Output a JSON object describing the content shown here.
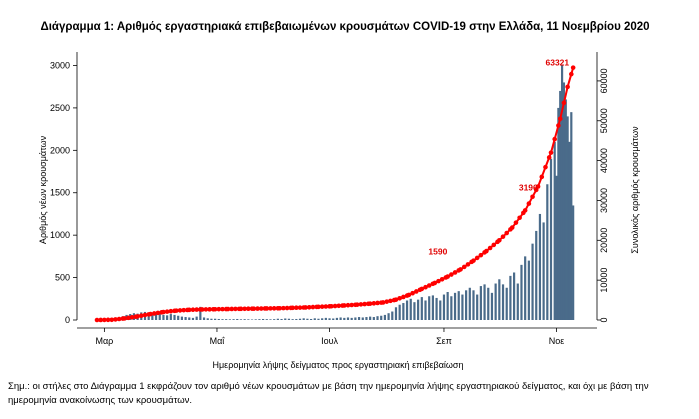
{
  "chart_data": {
    "type": "bar",
    "title": "Διάγραμμα 1: Αριθμός εργαστηριακά επιβεβαιωμένων κρουσμάτων COVID-19 στην Ελλάδα, 11 Νοεμβρίου 2020",
    "xlabel": "Ημερομηνία λήψης δείγματος προς εργαστηριακή επιβεβαίωση",
    "ylabel": "Αριθμός νέων κρουσμάτων",
    "ylabel_right": "Συνολικός αριθμός κρουσμάτων",
    "x_tick_labels": [
      "Μαρ",
      "Μαΐ",
      "Ιουλ",
      "Σεπ",
      "Νοε"
    ],
    "y_ticks": [
      0,
      500,
      1000,
      1500,
      2000,
      2500,
      3000
    ],
    "y_ticks_right": [
      0,
      10000,
      20000,
      30000,
      40000,
      50000,
      60000
    ],
    "ylim": [
      0,
      3100
    ],
    "ylim_right": [
      0,
      66000
    ],
    "x_range": [
      "2020-02-26",
      "2020-11-11"
    ],
    "grid": false,
    "series": [
      {
        "type": "bar",
        "color": "#4a6b8a",
        "points": [
          [
            "2020-02-26",
            2
          ],
          [
            "2020-02-28",
            3
          ],
          [
            "2020-03-01",
            5
          ],
          [
            "2020-03-03",
            8
          ],
          [
            "2020-03-05",
            12
          ],
          [
            "2020-03-07",
            20
          ],
          [
            "2020-03-09",
            35
          ],
          [
            "2020-03-11",
            45
          ],
          [
            "2020-03-13",
            60
          ],
          [
            "2020-03-15",
            70
          ],
          [
            "2020-03-17",
            80
          ],
          [
            "2020-03-19",
            75
          ],
          [
            "2020-03-21",
            90
          ],
          [
            "2020-03-23",
            95
          ],
          [
            "2020-03-25",
            85
          ],
          [
            "2020-03-27",
            80
          ],
          [
            "2020-03-29",
            90
          ],
          [
            "2020-03-31",
            75
          ],
          [
            "2020-04-02",
            60
          ],
          [
            "2020-04-04",
            55
          ],
          [
            "2020-04-06",
            70
          ],
          [
            "2020-04-08",
            60
          ],
          [
            "2020-04-10",
            50
          ],
          [
            "2020-04-12",
            40
          ],
          [
            "2020-04-14",
            35
          ],
          [
            "2020-04-16",
            30
          ],
          [
            "2020-04-18",
            25
          ],
          [
            "2020-04-20",
            40
          ],
          [
            "2020-04-22",
            155
          ],
          [
            "2020-04-24",
            30
          ],
          [
            "2020-04-26",
            20
          ],
          [
            "2020-04-28",
            15
          ],
          [
            "2020-04-30",
            15
          ],
          [
            "2020-05-02",
            12
          ],
          [
            "2020-05-04",
            10
          ],
          [
            "2020-05-06",
            10
          ],
          [
            "2020-05-08",
            8
          ],
          [
            "2020-05-10",
            10
          ],
          [
            "2020-05-12",
            12
          ],
          [
            "2020-05-14",
            8
          ],
          [
            "2020-05-16",
            10
          ],
          [
            "2020-05-18",
            8
          ],
          [
            "2020-05-20",
            6
          ],
          [
            "2020-05-22",
            8
          ],
          [
            "2020-05-24",
            10
          ],
          [
            "2020-05-26",
            12
          ],
          [
            "2020-05-28",
            10
          ],
          [
            "2020-05-30",
            8
          ],
          [
            "2020-06-01",
            10
          ],
          [
            "2020-06-03",
            15
          ],
          [
            "2020-06-05",
            12
          ],
          [
            "2020-06-07",
            18
          ],
          [
            "2020-06-09",
            15
          ],
          [
            "2020-06-11",
            10
          ],
          [
            "2020-06-13",
            12
          ],
          [
            "2020-06-15",
            15
          ],
          [
            "2020-06-17",
            20
          ],
          [
            "2020-06-19",
            15
          ],
          [
            "2020-06-21",
            12
          ],
          [
            "2020-06-23",
            20
          ],
          [
            "2020-06-25",
            15
          ],
          [
            "2020-06-27",
            20
          ],
          [
            "2020-06-29",
            25
          ],
          [
            "2020-07-01",
            20
          ],
          [
            "2020-07-03",
            18
          ],
          [
            "2020-07-05",
            25
          ],
          [
            "2020-07-07",
            30
          ],
          [
            "2020-07-09",
            25
          ],
          [
            "2020-07-11",
            30
          ],
          [
            "2020-07-13",
            25
          ],
          [
            "2020-07-15",
            30
          ],
          [
            "2020-07-17",
            35
          ],
          [
            "2020-07-19",
            30
          ],
          [
            "2020-07-21",
            35
          ],
          [
            "2020-07-23",
            40
          ],
          [
            "2020-07-25",
            35
          ],
          [
            "2020-07-27",
            45
          ],
          [
            "2020-07-29",
            50
          ],
          [
            "2020-07-31",
            60
          ],
          [
            "2020-08-02",
            80
          ],
          [
            "2020-08-04",
            100
          ],
          [
            "2020-08-06",
            150
          ],
          [
            "2020-08-08",
            180
          ],
          [
            "2020-08-10",
            200
          ],
          [
            "2020-08-12",
            230
          ],
          [
            "2020-08-14",
            250
          ],
          [
            "2020-08-16",
            210
          ],
          [
            "2020-08-18",
            240
          ],
          [
            "2020-08-20",
            270
          ],
          [
            "2020-08-22",
            230
          ],
          [
            "2020-08-24",
            280
          ],
          [
            "2020-08-26",
            290
          ],
          [
            "2020-08-28",
            260
          ],
          [
            "2020-08-30",
            230
          ],
          [
            "2020-09-01",
            300
          ],
          [
            "2020-09-03",
            330
          ],
          [
            "2020-09-05",
            280
          ],
          [
            "2020-09-07",
            320
          ],
          [
            "2020-09-09",
            340
          ],
          [
            "2020-09-11",
            300
          ],
          [
            "2020-09-13",
            350
          ],
          [
            "2020-09-15",
            380
          ],
          [
            "2020-09-17",
            350
          ],
          [
            "2020-09-19",
            300
          ],
          [
            "2020-09-21",
            400
          ],
          [
            "2020-09-23",
            420
          ],
          [
            "2020-09-25",
            380
          ],
          [
            "2020-09-27",
            320
          ],
          [
            "2020-09-29",
            430
          ],
          [
            "2020-10-01",
            480
          ],
          [
            "2020-10-03",
            420
          ],
          [
            "2020-10-05",
            380
          ],
          [
            "2020-10-07",
            520
          ],
          [
            "2020-10-09",
            560
          ],
          [
            "2020-10-11",
            430
          ],
          [
            "2020-10-13",
            650
          ],
          [
            "2020-10-15",
            750
          ],
          [
            "2020-10-17",
            700
          ],
          [
            "2020-10-19",
            900
          ],
          [
            "2020-10-21",
            1050
          ],
          [
            "2020-10-23",
            1250
          ],
          [
            "2020-10-25",
            1150
          ],
          [
            "2020-10-27",
            1600
          ],
          [
            "2020-10-29",
            1900
          ],
          [
            "2020-10-31",
            2100
          ],
          [
            "2020-11-01",
            1700
          ],
          [
            "2020-11-02",
            2500
          ],
          [
            "2020-11-03",
            2700
          ],
          [
            "2020-11-04",
            3000
          ],
          [
            "2020-11-05",
            2800
          ],
          [
            "2020-11-06",
            2600
          ],
          [
            "2020-11-07",
            2400
          ],
          [
            "2020-11-08",
            2100
          ],
          [
            "2020-11-09",
            2450
          ],
          [
            "2020-11-10",
            1350
          ]
        ]
      },
      {
        "type": "line",
        "axis": "right",
        "color": "#ff0000",
        "points": [
          [
            "2020-02-26",
            2
          ],
          [
            "2020-03-05",
            50
          ],
          [
            "2020-03-12",
            400
          ],
          [
            "2020-03-19",
            900
          ],
          [
            "2020-03-26",
            1500
          ],
          [
            "2020-04-02",
            2000
          ],
          [
            "2020-04-09",
            2350
          ],
          [
            "2020-04-16",
            2550
          ],
          [
            "2020-04-23",
            2650
          ],
          [
            "2020-04-30",
            2700
          ],
          [
            "2020-05-07",
            2750
          ],
          [
            "2020-05-14",
            2800
          ],
          [
            "2020-05-21",
            2850
          ],
          [
            "2020-05-28",
            2900
          ],
          [
            "2020-06-04",
            2950
          ],
          [
            "2020-06-11",
            3050
          ],
          [
            "2020-06-18",
            3150
          ],
          [
            "2020-06-25",
            3300
          ],
          [
            "2020-07-02",
            3450
          ],
          [
            "2020-07-09",
            3650
          ],
          [
            "2020-07-16",
            3850
          ],
          [
            "2020-07-23",
            4100
          ],
          [
            "2020-07-30",
            4400
          ],
          [
            "2020-08-06",
            5100
          ],
          [
            "2020-08-13",
            6300
          ],
          [
            "2020-08-20",
            7800
          ],
          [
            "2020-08-27",
            9300
          ],
          [
            "2020-09-03",
            10900
          ],
          [
            "2020-09-10",
            12700
          ],
          [
            "2020-09-17",
            14900
          ],
          [
            "2020-09-24",
            17300
          ],
          [
            "2020-10-01",
            20000
          ],
          [
            "2020-10-08",
            23200
          ],
          [
            "2020-10-15",
            27500
          ],
          [
            "2020-10-22",
            33500
          ],
          [
            "2020-10-29",
            42000
          ],
          [
            "2020-11-03",
            50500
          ],
          [
            "2020-11-07",
            58500
          ],
          [
            "2020-11-10",
            63321
          ]
        ]
      }
    ],
    "annotations": [
      {
        "text": "1590",
        "x": "2020-09-05",
        "y": 15900
      },
      {
        "text": "3196",
        "x": "2020-10-24",
        "y": 31960
      },
      {
        "text": "63321",
        "x": "2020-11-10",
        "y": 63321
      }
    ],
    "note": "Σημ.: οι στήλες στο Διάγραμμα 1 εκφράζουν τον αριθμό νέων κρουσμάτων με βάση την ημερομηνία λήψης εργαστηριακού δείγματος, και όχι με βάση την ημερομηνία ανακοίνωσης των κρουσμάτων."
  }
}
